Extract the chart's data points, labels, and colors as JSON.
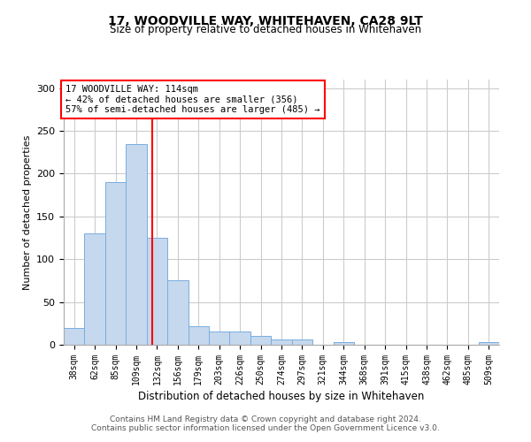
{
  "title1": "17, WOODVILLE WAY, WHITEHAVEN, CA28 9LT",
  "title2": "Size of property relative to detached houses in Whitehaven",
  "xlabel": "Distribution of detached houses by size in Whitehaven",
  "ylabel": "Number of detached properties",
  "categories": [
    "38sqm",
    "62sqm",
    "85sqm",
    "109sqm",
    "132sqm",
    "156sqm",
    "179sqm",
    "203sqm",
    "226sqm",
    "250sqm",
    "274sqm",
    "297sqm",
    "321sqm",
    "344sqm",
    "368sqm",
    "391sqm",
    "415sqm",
    "438sqm",
    "462sqm",
    "485sqm",
    "509sqm"
  ],
  "values": [
    20,
    130,
    190,
    235,
    125,
    75,
    22,
    15,
    15,
    10,
    6,
    6,
    0,
    3,
    0,
    0,
    0,
    0,
    0,
    0,
    3
  ],
  "bar_color": "#c5d8ed",
  "bar_edge_color": "#7aade0",
  "vline_x": 3.75,
  "vline_color": "red",
  "annotation_text": "17 WOODVILLE WAY: 114sqm\n← 42% of detached houses are smaller (356)\n57% of semi-detached houses are larger (485) →",
  "annotation_box_color": "white",
  "annotation_box_edge": "red",
  "ylim": [
    0,
    310
  ],
  "yticks": [
    0,
    50,
    100,
    150,
    200,
    250,
    300
  ],
  "footer1": "Contains HM Land Registry data © Crown copyright and database right 2024.",
  "footer2": "Contains public sector information licensed under the Open Government Licence v3.0.",
  "bg_color": "#ffffff",
  "plot_bg_color": "#ffffff"
}
